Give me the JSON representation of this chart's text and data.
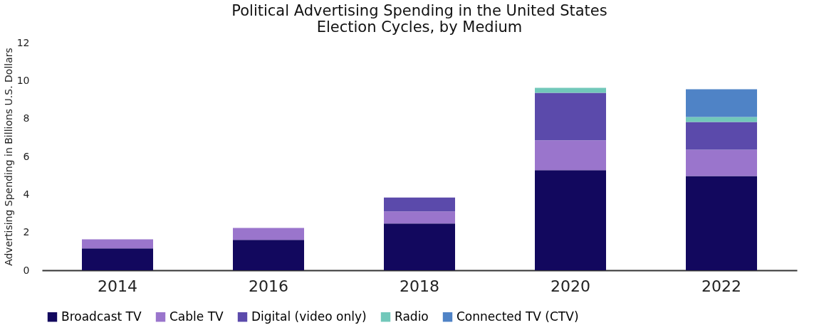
{
  "chart_data": {
    "type": "bar",
    "title": [
      "Political Advertising Spending in the United States",
      "Election Cycles, by Medium"
    ],
    "ylabel": "Advertising Spending in Billions U.S. Dollars",
    "categories": [
      "2014",
      "2016",
      "2018",
      "2020",
      "2022"
    ],
    "stacked": true,
    "ylim": [
      0,
      12
    ],
    "yticks": [
      0,
      2,
      4,
      6,
      8,
      10,
      12
    ],
    "grid": false,
    "legend": "bottom",
    "series": [
      {
        "name": "Broadcast TV",
        "color": "#12085e",
        "values": [
          1.15,
          1.6,
          2.47,
          5.28,
          4.97
        ]
      },
      {
        "name": "Cable TV",
        "color": "#9a75cc",
        "values": [
          0.48,
          0.63,
          0.63,
          1.57,
          1.39
        ]
      },
      {
        "name": "Digital (video only)",
        "color": "#5b4aab",
        "values": [
          null,
          null,
          0.73,
          2.51,
          1.46
        ]
      },
      {
        "name": "Radio",
        "color": "#72c8ba",
        "values": [
          null,
          null,
          null,
          0.26,
          0.26
        ]
      },
      {
        "name": "Connected TV (CTV)",
        "color": "#4f83c6",
        "values": [
          null,
          null,
          null,
          null,
          1.46
        ]
      }
    ]
  }
}
